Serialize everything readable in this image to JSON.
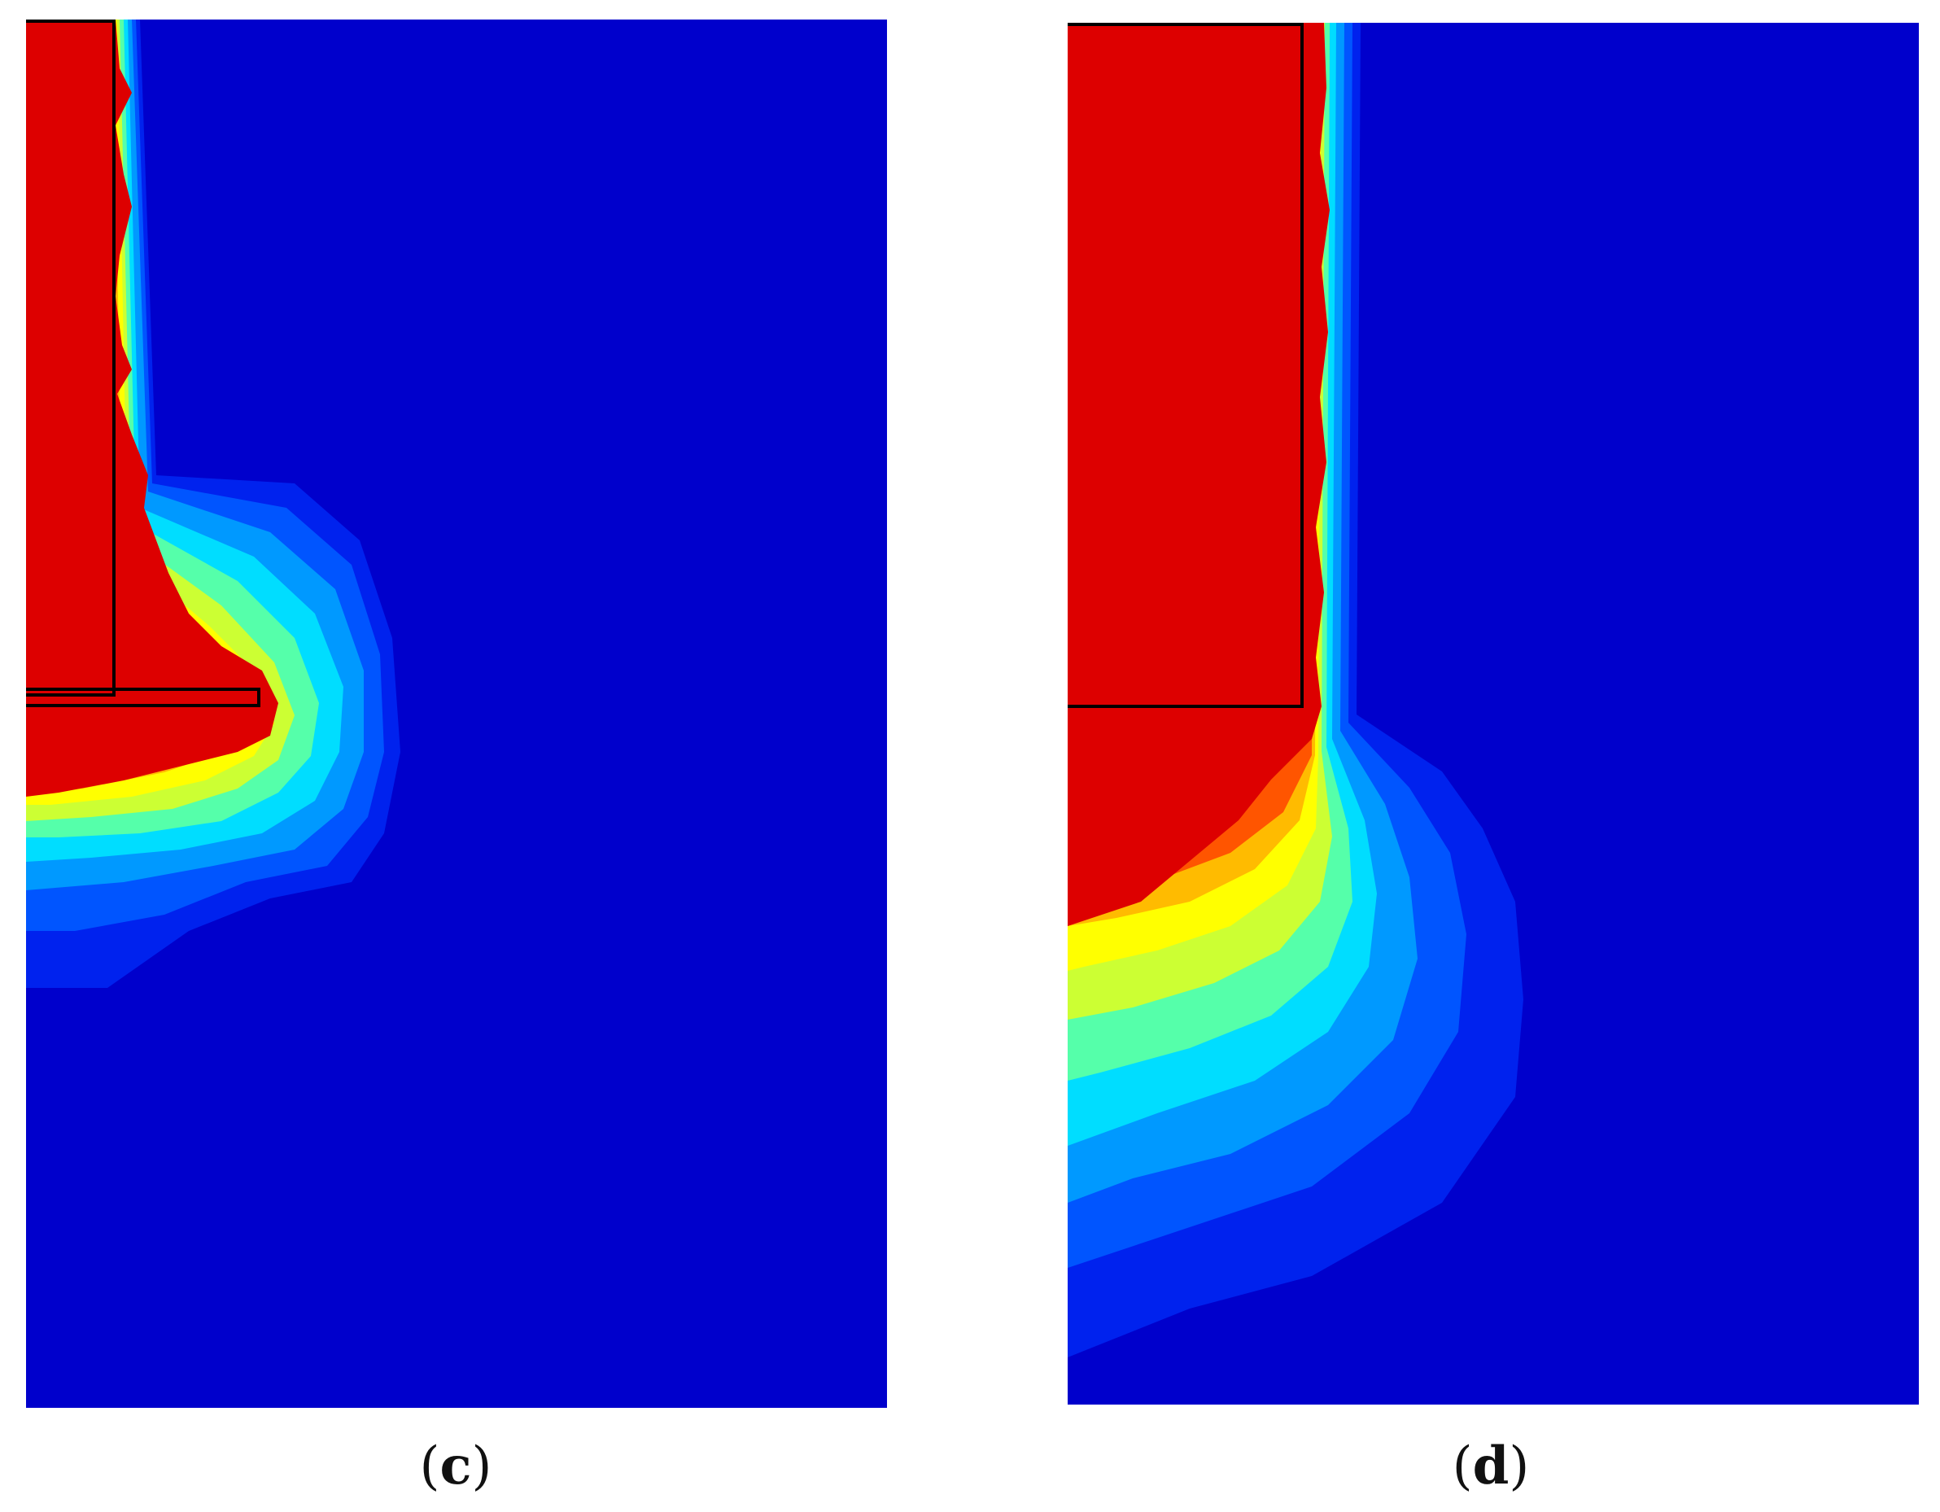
{
  "figure": {
    "panels": [
      {
        "id": "c",
        "label_open": "(",
        "label_letter": "c",
        "label_close": ")",
        "description_visible": false
      },
      {
        "id": "d",
        "label_open": "(",
        "label_letter": "d",
        "label_close": ")",
        "description_visible": false
      }
    ],
    "colors": {
      "background_field": "#0000cc",
      "band_1": "#0022ee",
      "band_2": "#0055ff",
      "band_3": "#0099ff",
      "band_4": "#00ddff",
      "band_5": "#55ffaa",
      "band_6": "#ccff33",
      "band_7": "#ffff00",
      "band_8": "#ffbb00",
      "band_9": "#ff5500",
      "band_10": "#dd0000",
      "outline": "#000000"
    }
  }
}
